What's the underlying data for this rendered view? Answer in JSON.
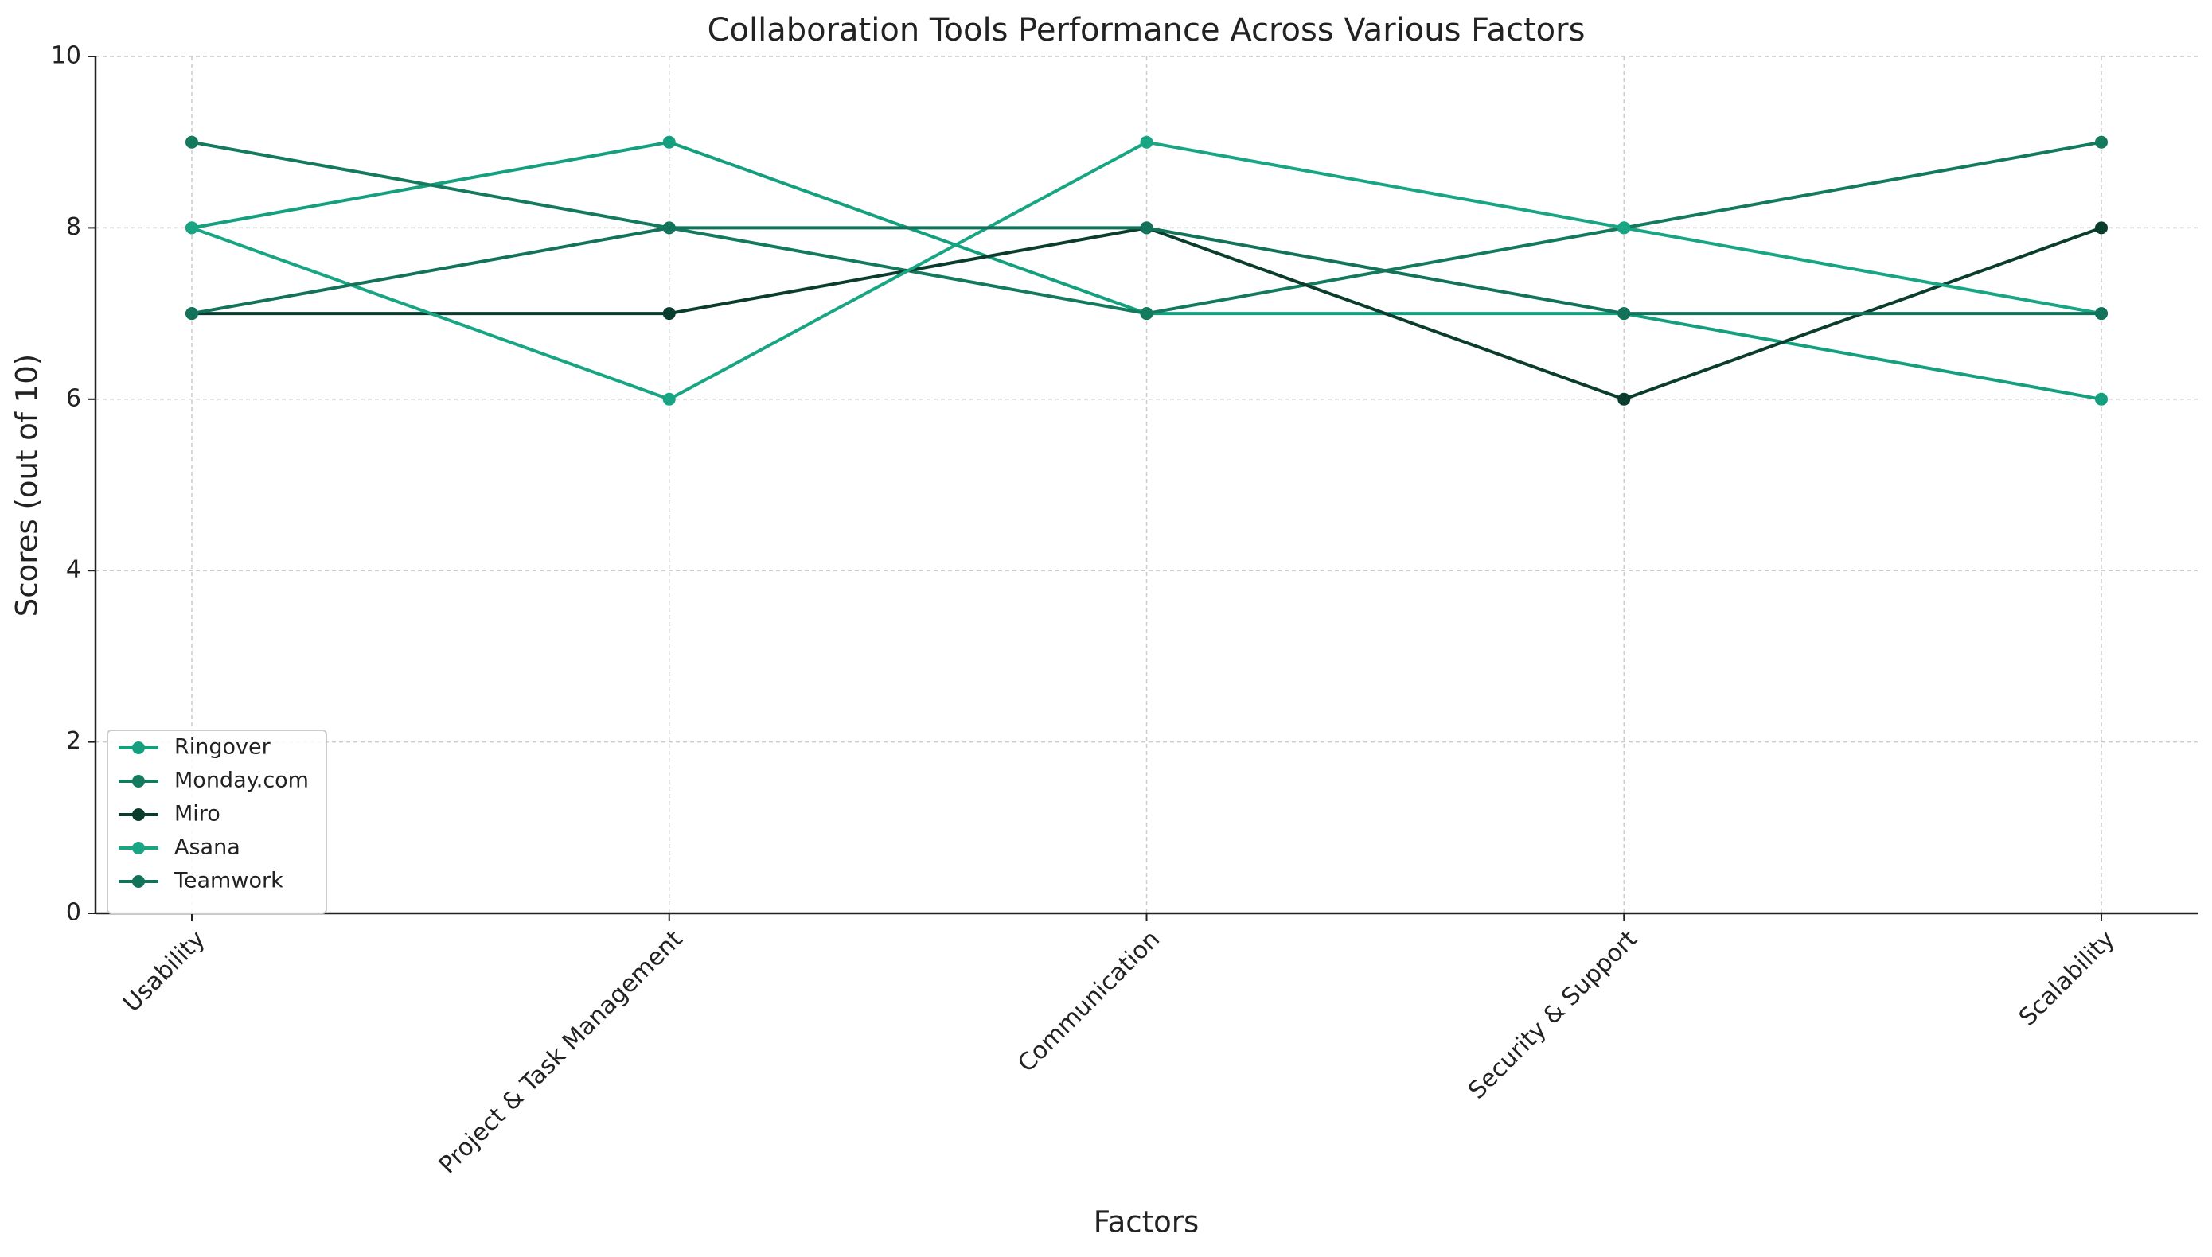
{
  "chart_data": {
    "type": "line",
    "title": "Collaboration Tools Performance Across Various Factors",
    "x_label": "Factors",
    "y_label": "Scores (out of 10)",
    "categories": [
      "Usability",
      "Project & Task Management",
      "Communication",
      "Security & Support",
      "Scalability"
    ],
    "series": [
      {
        "name": "Ringover",
        "color": "#14a07f",
        "values": [
          8,
          9,
          7,
          7,
          6
        ]
      },
      {
        "name": "Monday.com",
        "color": "#137a5e",
        "values": [
          9,
          8,
          7,
          8,
          9
        ]
      },
      {
        "name": "Miro",
        "color": "#0b3d2e",
        "values": [
          7,
          7,
          8,
          6,
          8
        ]
      },
      {
        "name": "Asana",
        "color": "#18a584",
        "values": [
          8,
          6,
          9,
          8,
          7
        ]
      },
      {
        "name": "Teamwork",
        "color": "#12735a",
        "values": [
          7,
          8,
          8,
          7,
          7
        ]
      }
    ],
    "ylim": [
      0,
      10
    ],
    "yticks": [
      0,
      2,
      4,
      6,
      8,
      10
    ],
    "grid": true,
    "legend": "lower left"
  }
}
